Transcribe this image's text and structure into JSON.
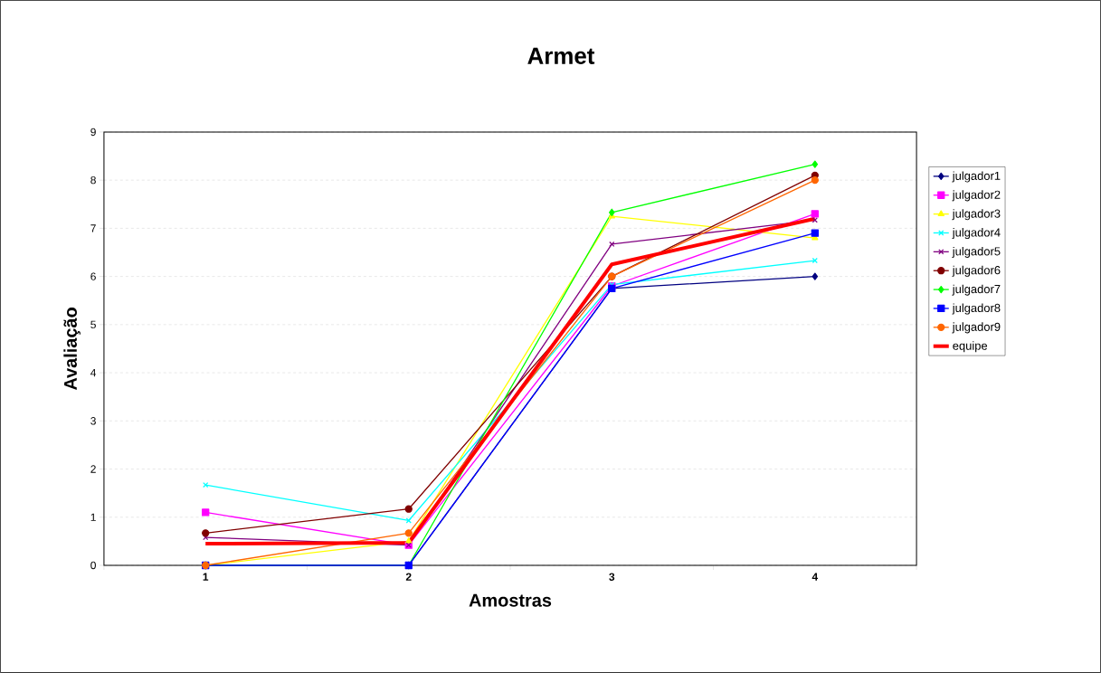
{
  "chart_data": {
    "type": "line",
    "title": "Armet",
    "xlabel": "Amostras",
    "ylabel": "Avaliação",
    "categories": [
      "1",
      "2",
      "3",
      "4"
    ],
    "series": [
      {
        "name": "julgador1",
        "color": "#000080",
        "marker": "diamond",
        "values": [
          0,
          0,
          5.75,
          6.0
        ]
      },
      {
        "name": "julgador2",
        "color": "#ff00ff",
        "marker": "square",
        "values": [
          1.1,
          0.42,
          5.8,
          7.3
        ]
      },
      {
        "name": "julgador3",
        "color": "#ffff00",
        "marker": "triangle",
        "values": [
          0,
          0.5,
          7.25,
          6.8
        ]
      },
      {
        "name": "julgador4",
        "color": "#00ffff",
        "marker": "cross",
        "values": [
          1.67,
          0.93,
          5.83,
          6.33
        ]
      },
      {
        "name": "julgador5",
        "color": "#800080",
        "marker": "cross",
        "values": [
          0.58,
          0.42,
          6.67,
          7.17
        ]
      },
      {
        "name": "julgador6",
        "color": "#800000",
        "marker": "circle",
        "values": [
          0.67,
          1.17,
          6.0,
          8.1
        ]
      },
      {
        "name": "julgador7",
        "color": "#00ff00",
        "marker": "diamond",
        "values": [
          0,
          0,
          7.33,
          8.33
        ]
      },
      {
        "name": "julgador8",
        "color": "#0000ff",
        "marker": "square",
        "values": [
          0,
          0,
          5.75,
          6.9
        ]
      },
      {
        "name": "julgador9",
        "color": "#ff6600",
        "marker": "circle",
        "values": [
          0,
          0.67,
          6.0,
          8.0
        ]
      },
      {
        "name": "equipe",
        "color": "#ff0000",
        "marker": "none",
        "values": [
          0.45,
          0.47,
          6.25,
          7.2
        ]
      }
    ],
    "ylim": [
      0,
      9
    ],
    "yticks": [
      0,
      1,
      2,
      3,
      4,
      5,
      6,
      7,
      8,
      9
    ],
    "grid": "y",
    "legend": "right",
    "line_style": "solid"
  }
}
